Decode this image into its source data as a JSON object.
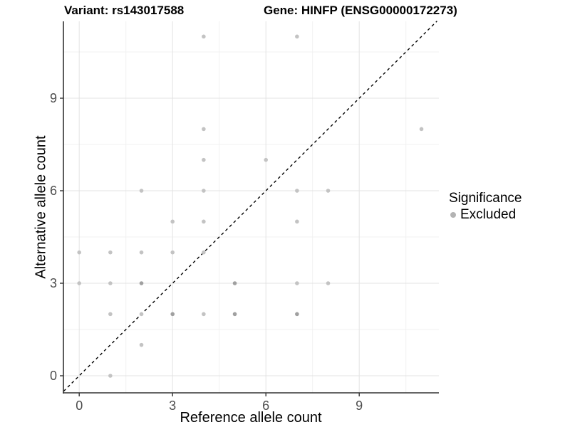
{
  "window": {
    "background": "#ffffff"
  },
  "header": {
    "title_left": "Variant: rs143017588",
    "title_right": "Gene: HINFP (ENSG00000172273)"
  },
  "legend": {
    "title": "Significance",
    "items": [
      {
        "label": "Excluded",
        "key_color": "#b3b3b3"
      }
    ]
  },
  "colors": {
    "grid_major": "#e3e3e3",
    "grid_minor": "#f1f1f1",
    "axis": "#333333",
    "tick_label": "#4d4d4d",
    "point_light": "#c3c3c3",
    "point_dark": "#a0a0a0",
    "identity_line": "#000000"
  },
  "chart_data": {
    "type": "scatter",
    "title": "Variant: rs143017588 — Gene: HINFP (ENSG00000172273)",
    "xlabel": "Reference allele count",
    "ylabel": "Alternative allele count",
    "xlim": [
      -0.5,
      11.55
    ],
    "ylim": [
      -0.55,
      11.5
    ],
    "x_ticks": [
      0,
      3,
      6,
      9
    ],
    "y_ticks": [
      0,
      3,
      6,
      9
    ],
    "x_minor_gridlines": [
      1.5,
      4.5,
      7.5,
      10.5
    ],
    "y_minor_gridlines": [
      1.5,
      4.5,
      7.5,
      10.5
    ],
    "grid": "major and minor, light gray on white panel",
    "legend_position": "right-middle",
    "identity_line": {
      "type": "y=x",
      "style": "dashed",
      "color": "#000000",
      "from": -0.5,
      "to": 11.5
    },
    "series": [
      {
        "name": "Excluded",
        "color": "#c3c3c3",
        "points": [
          [
            1,
            0
          ],
          [
            2,
            1
          ],
          [
            1,
            2
          ],
          [
            2,
            2
          ],
          [
            3,
            2
          ],
          [
            4,
            2
          ],
          [
            5,
            2
          ],
          [
            7,
            2
          ],
          [
            0,
            3
          ],
          [
            1,
            3
          ],
          [
            2,
            3
          ],
          [
            5,
            3
          ],
          [
            7,
            3
          ],
          [
            8,
            3
          ],
          [
            0,
            4
          ],
          [
            1,
            4
          ],
          [
            2,
            4
          ],
          [
            3,
            4
          ],
          [
            4,
            4
          ],
          [
            3,
            5
          ],
          [
            4,
            5
          ],
          [
            7,
            5
          ],
          [
            2,
            6
          ],
          [
            4,
            6
          ],
          [
            7,
            6
          ],
          [
            8,
            6
          ],
          [
            4,
            7
          ],
          [
            6,
            7
          ],
          [
            4,
            8
          ],
          [
            11,
            8
          ],
          [
            4,
            11
          ],
          [
            7,
            11
          ]
        ]
      }
    ],
    "overplotted_darker_points": [
      [
        3,
        2
      ],
      [
        5,
        2
      ],
      [
        7,
        2
      ],
      [
        2,
        3
      ],
      [
        5,
        3
      ]
    ]
  }
}
